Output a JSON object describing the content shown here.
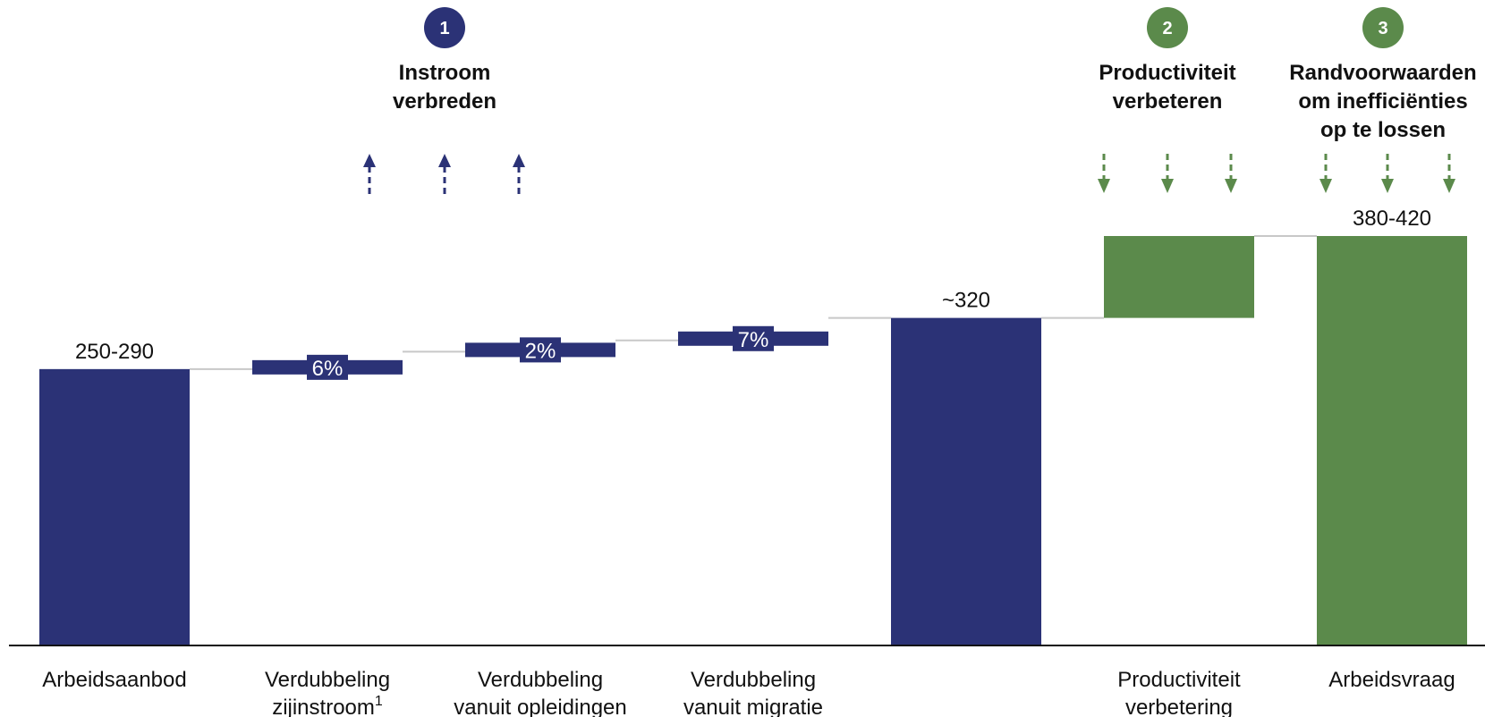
{
  "colors": {
    "blue": "#2b3276",
    "green": "#5b8a4b",
    "connector": "#c8c8c8",
    "axis": "#111111"
  },
  "chart_data": {
    "type": "bar",
    "subtype": "waterfall",
    "categories": [
      [
        "Arbeidsaanbod"
      ],
      [
        "Verdubbeling",
        "zijinstroom"
      ],
      [
        "Verdubbeling",
        "vanuit opleidingen"
      ],
      [
        "Verdubbeling",
        "vanuit migratie"
      ],
      [],
      [
        "Productiviteit",
        "verbetering"
      ],
      [
        "Arbeidsvraag"
      ]
    ],
    "footnotes": [
      "",
      "1",
      "",
      "",
      "",
      "",
      ""
    ],
    "bars": [
      {
        "kind": "total",
        "value": 270,
        "label": "250-290",
        "color": "blue"
      },
      {
        "kind": "delta",
        "start": 270,
        "end": 287,
        "label": "6%",
        "color": "blue"
      },
      {
        "kind": "delta",
        "start": 287,
        "end": 293,
        "label": "2%",
        "color": "blue"
      },
      {
        "kind": "delta",
        "start": 298,
        "end": 318,
        "label": "7%",
        "color": "blue"
      },
      {
        "kind": "total",
        "value": 320,
        "label": "~320",
        "color": "blue"
      },
      {
        "kind": "delta",
        "start": 320,
        "end": 400,
        "label": "",
        "color": "green"
      },
      {
        "kind": "total",
        "value": 400,
        "label": "380-420",
        "color": "green"
      }
    ],
    "ylim": [
      0,
      400
    ],
    "groups": [
      {
        "number": "1",
        "title": [
          "Instroom",
          "verbreden"
        ],
        "color": "blue",
        "arrow_direction": "up",
        "arrow_count": 3
      },
      {
        "number": "2",
        "title": [
          "Productiviteit",
          "verbeteren"
        ],
        "color": "green",
        "arrow_direction": "down",
        "arrow_count": 3
      },
      {
        "number": "3",
        "title": [
          "Randvoorwaarden",
          "om inefficiënties",
          "op te lossen"
        ],
        "color": "green",
        "arrow_direction": "down",
        "arrow_count": 3
      }
    ],
    "grid": false,
    "legend": "none"
  }
}
